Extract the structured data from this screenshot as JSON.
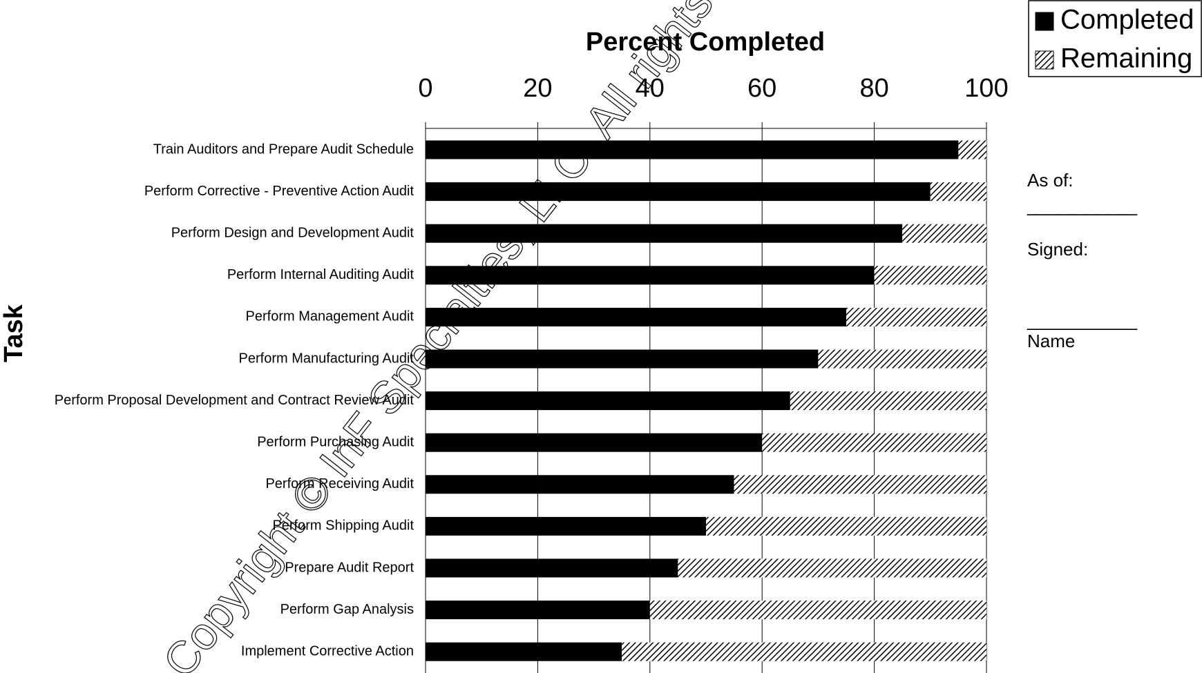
{
  "chart_data": {
    "type": "stacked-barh",
    "title": "Percent Completed",
    "ylabel": "Task",
    "categories": [
      "Train Auditors and Prepare Audit Schedule",
      "Perform Corrective - Preventive Action Audit",
      "Perform Design and Development Audit",
      "Perform Internal Auditing Audit",
      "Perform Management Audit",
      "Perform Manufacturing Audit",
      "Perform Proposal Development and Contract Review Audit",
      "Perform Purchasing Audit",
      "Perform Receiving Audit",
      "Perform Shipping Audit",
      "Prepare Audit Report",
      "Perform Gap Analysis",
      "Implement Corrective Action"
    ],
    "series": [
      {
        "name": "Completed",
        "color": "#000000",
        "values": [
          95,
          90,
          85,
          80,
          75,
          70,
          65,
          60,
          55,
          50,
          45,
          40,
          35
        ]
      },
      {
        "name": "Remaining",
        "color": "hatch",
        "values": [
          5,
          10,
          15,
          20,
          25,
          30,
          35,
          40,
          45,
          50,
          55,
          60,
          65
        ]
      }
    ],
    "xlim": [
      0,
      100
    ],
    "xticks": [
      0,
      20,
      40,
      60,
      80,
      100
    ],
    "grid": true,
    "legend": "upper right",
    "side_notes": [
      "As of:",
      "___________",
      "Signed:",
      "___________",
      "Name"
    ],
    "watermark": "Copyright © InF Specialties, LLC. All rights reserved w"
  }
}
